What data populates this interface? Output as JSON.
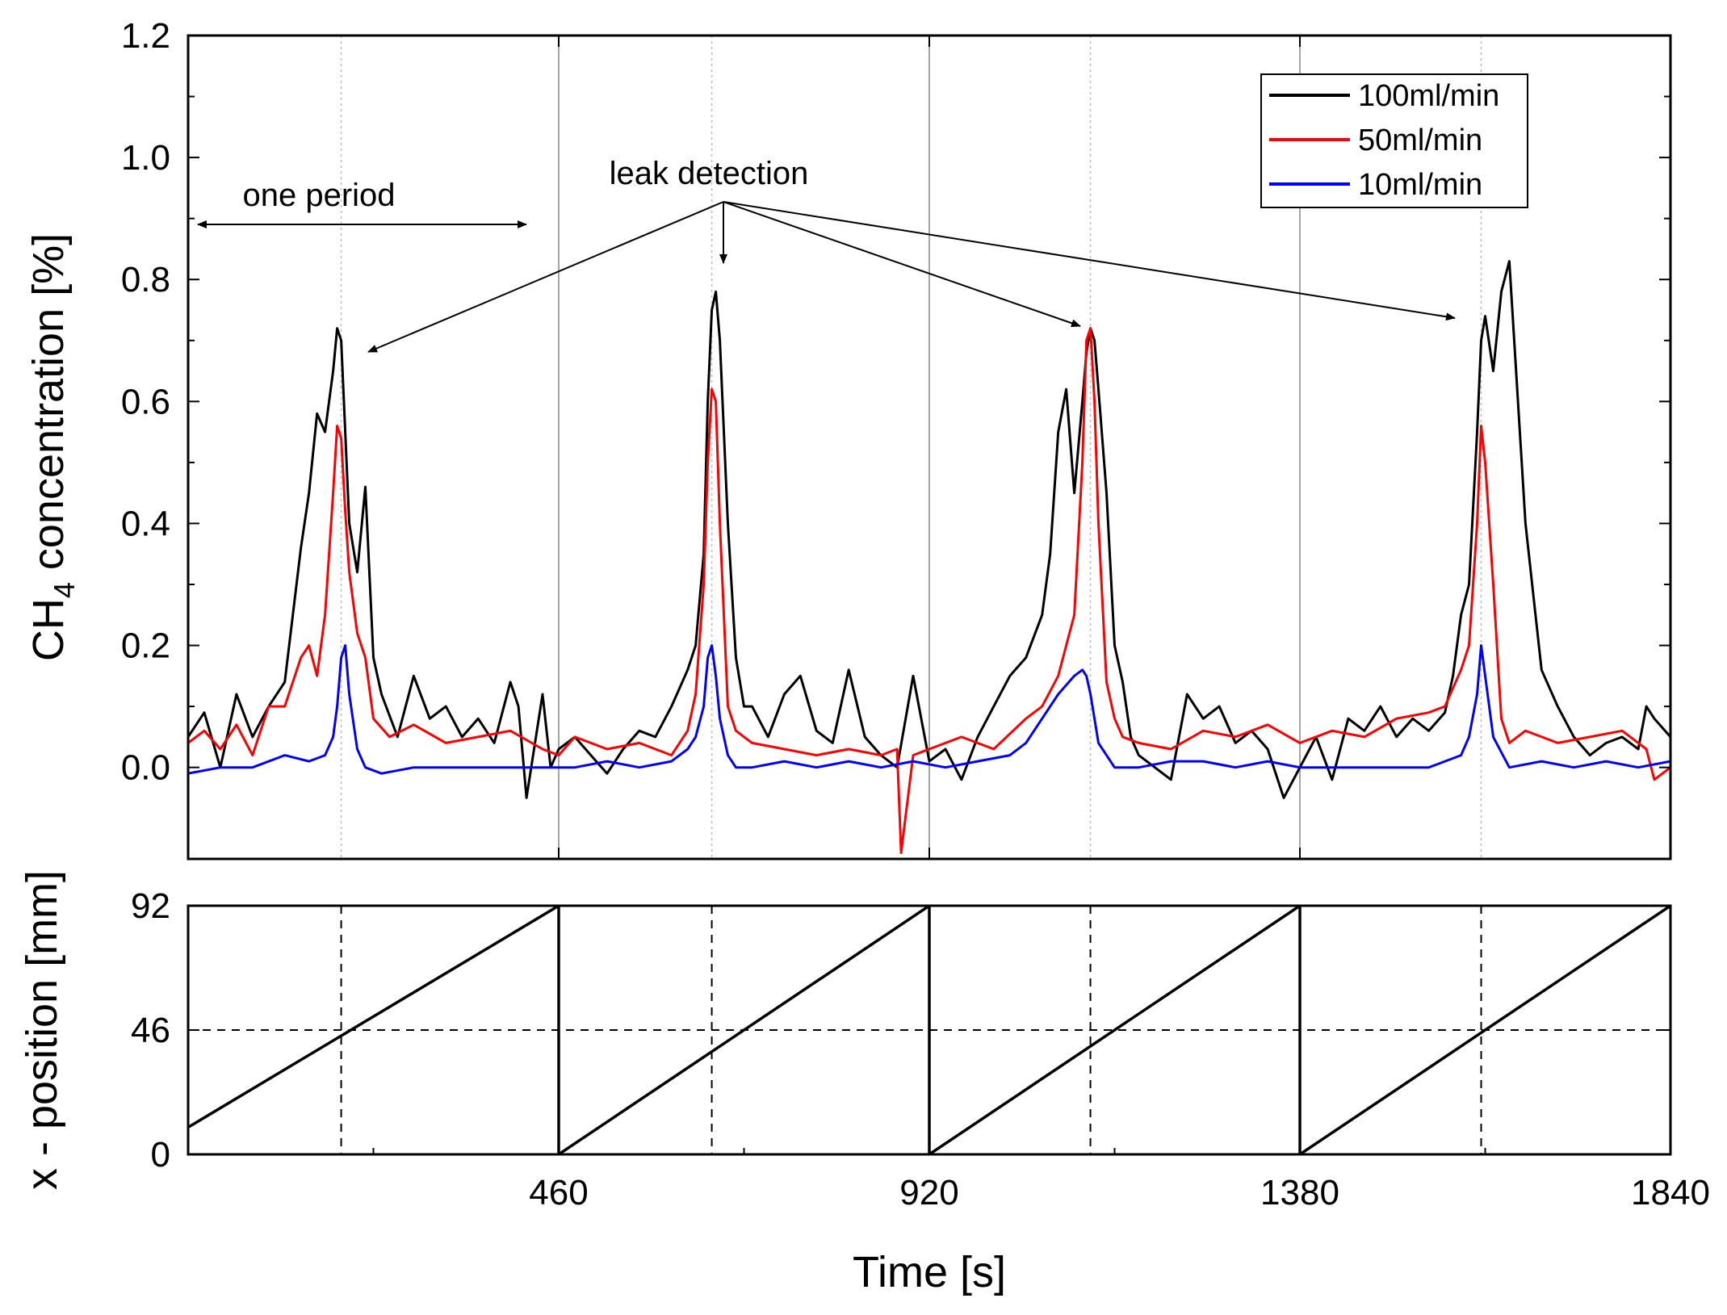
{
  "chart_data": [
    {
      "type": "line",
      "title": "",
      "xlabel": "",
      "ylabel_main": "CH",
      "ylabel_sub": "4",
      "ylabel_rest": " concentration [%]",
      "xlim": [
        0,
        1840
      ],
      "ylim": [
        -0.15,
        1.2
      ],
      "yticks": [
        0.0,
        0.2,
        0.4,
        0.6,
        0.8,
        1.0,
        1.2
      ],
      "ytick_labels": [
        "0.0",
        "0.2",
        "0.4",
        "0.6",
        "0.8",
        "1.0",
        "1.2"
      ],
      "period_lines_x": [
        460,
        920,
        1380
      ],
      "detection_lines_x": [
        190,
        650,
        1120,
        1605
      ],
      "legend_position": "top-right",
      "series": [
        {
          "name": "100ml/min",
          "color": "#000000",
          "x": [
            0,
            20,
            40,
            60,
            80,
            100,
            120,
            140,
            150,
            160,
            170,
            180,
            185,
            190,
            195,
            200,
            210,
            220,
            230,
            240,
            260,
            280,
            300,
            320,
            340,
            360,
            380,
            400,
            410,
            420,
            440,
            450,
            460,
            480,
            500,
            520,
            540,
            560,
            580,
            600,
            620,
            630,
            640,
            645,
            650,
            655,
            660,
            670,
            680,
            690,
            700,
            720,
            740,
            760,
            780,
            800,
            820,
            840,
            860,
            880,
            900,
            920,
            940,
            960,
            980,
            1000,
            1020,
            1040,
            1060,
            1070,
            1080,
            1090,
            1100,
            1110,
            1115,
            1120,
            1125,
            1130,
            1140,
            1150,
            1160,
            1170,
            1180,
            1200,
            1220,
            1240,
            1260,
            1280,
            1300,
            1320,
            1340,
            1360,
            1380,
            1400,
            1420,
            1440,
            1460,
            1480,
            1500,
            1520,
            1540,
            1560,
            1570,
            1580,
            1590,
            1600,
            1605,
            1610,
            1620,
            1630,
            1640,
            1660,
            1680,
            1700,
            1720,
            1740,
            1760,
            1780,
            1800,
            1810,
            1820,
            1840
          ],
          "y": [
            0.05,
            0.09,
            0.0,
            0.12,
            0.05,
            0.1,
            0.14,
            0.36,
            0.45,
            0.58,
            0.55,
            0.65,
            0.72,
            0.7,
            0.55,
            0.4,
            0.32,
            0.46,
            0.18,
            0.12,
            0.05,
            0.15,
            0.08,
            0.1,
            0.05,
            0.08,
            0.04,
            0.14,
            0.1,
            -0.05,
            0.12,
            0.0,
            0.03,
            0.05,
            0.02,
            -0.01,
            0.03,
            0.06,
            0.05,
            0.1,
            0.16,
            0.2,
            0.35,
            0.6,
            0.75,
            0.78,
            0.7,
            0.4,
            0.18,
            0.1,
            0.1,
            0.05,
            0.12,
            0.15,
            0.06,
            0.04,
            0.16,
            0.05,
            0.02,
            0.0,
            0.15,
            0.01,
            0.03,
            -0.02,
            0.05,
            0.1,
            0.15,
            0.18,
            0.25,
            0.35,
            0.55,
            0.62,
            0.45,
            0.6,
            0.68,
            0.72,
            0.7,
            0.62,
            0.45,
            0.2,
            0.14,
            0.05,
            0.02,
            0.0,
            -0.02,
            0.12,
            0.08,
            0.1,
            0.04,
            0.06,
            0.03,
            -0.05,
            0.0,
            0.05,
            -0.02,
            0.08,
            0.06,
            0.1,
            0.05,
            0.08,
            0.06,
            0.09,
            0.15,
            0.25,
            0.3,
            0.55,
            0.7,
            0.74,
            0.65,
            0.78,
            0.83,
            0.4,
            0.16,
            0.1,
            0.05,
            0.02,
            0.04,
            0.05,
            0.03,
            0.1,
            0.08,
            0.05
          ]
        },
        {
          "name": "50ml/min",
          "color": "#ff0000",
          "x": [
            0,
            20,
            40,
            60,
            80,
            100,
            120,
            140,
            150,
            160,
            170,
            180,
            185,
            190,
            195,
            200,
            210,
            220,
            230,
            250,
            280,
            320,
            360,
            400,
            440,
            460,
            480,
            520,
            560,
            600,
            620,
            630,
            640,
            645,
            650,
            655,
            660,
            670,
            680,
            700,
            740,
            780,
            820,
            860,
            880,
            885,
            900,
            920,
            960,
            1000,
            1040,
            1060,
            1080,
            1100,
            1110,
            1115,
            1120,
            1125,
            1130,
            1140,
            1150,
            1160,
            1180,
            1220,
            1260,
            1300,
            1340,
            1380,
            1420,
            1460,
            1500,
            1540,
            1560,
            1580,
            1590,
            1600,
            1605,
            1610,
            1620,
            1630,
            1640,
            1660,
            1700,
            1740,
            1780,
            1810,
            1820,
            1840
          ],
          "y": [
            0.04,
            0.06,
            0.03,
            0.07,
            0.02,
            0.1,
            0.1,
            0.18,
            0.2,
            0.15,
            0.25,
            0.45,
            0.56,
            0.54,
            0.42,
            0.32,
            0.22,
            0.18,
            0.08,
            0.05,
            0.07,
            0.04,
            0.05,
            0.06,
            0.03,
            0.02,
            0.05,
            0.03,
            0.04,
            0.02,
            0.06,
            0.12,
            0.3,
            0.5,
            0.62,
            0.6,
            0.4,
            0.1,
            0.06,
            0.04,
            0.03,
            0.02,
            0.03,
            0.02,
            0.03,
            -0.14,
            0.02,
            0.03,
            0.05,
            0.03,
            0.08,
            0.1,
            0.15,
            0.25,
            0.5,
            0.7,
            0.72,
            0.6,
            0.4,
            0.14,
            0.08,
            0.05,
            0.04,
            0.03,
            0.06,
            0.05,
            0.07,
            0.04,
            0.06,
            0.05,
            0.08,
            0.09,
            0.1,
            0.16,
            0.2,
            0.4,
            0.56,
            0.5,
            0.3,
            0.08,
            0.04,
            0.06,
            0.04,
            0.05,
            0.06,
            0.03,
            -0.02,
            0.0
          ]
        },
        {
          "name": "10ml/min",
          "color": "#0000ff",
          "x": [
            0,
            40,
            80,
            120,
            150,
            170,
            180,
            185,
            190,
            195,
            200,
            210,
            220,
            240,
            280,
            320,
            360,
            400,
            440,
            480,
            520,
            560,
            600,
            620,
            630,
            640,
            645,
            650,
            655,
            660,
            670,
            680,
            700,
            740,
            780,
            820,
            860,
            900,
            940,
            980,
            1020,
            1040,
            1060,
            1080,
            1100,
            1110,
            1115,
            1120,
            1125,
            1130,
            1140,
            1150,
            1180,
            1220,
            1260,
            1300,
            1340,
            1380,
            1420,
            1460,
            1500,
            1540,
            1580,
            1590,
            1600,
            1605,
            1610,
            1620,
            1640,
            1680,
            1720,
            1760,
            1800,
            1840
          ],
          "y": [
            -0.01,
            0.0,
            0.0,
            0.02,
            0.01,
            0.02,
            0.05,
            0.1,
            0.18,
            0.2,
            0.12,
            0.03,
            0.0,
            -0.01,
            0.0,
            0.0,
            0.0,
            0.0,
            0.0,
            0.0,
            0.01,
            0.0,
            0.01,
            0.03,
            0.05,
            0.1,
            0.18,
            0.2,
            0.15,
            0.08,
            0.02,
            0.0,
            0.0,
            0.01,
            0.0,
            0.01,
            0.0,
            0.01,
            0.0,
            0.01,
            0.02,
            0.04,
            0.08,
            0.12,
            0.15,
            0.16,
            0.15,
            0.12,
            0.08,
            0.04,
            0.02,
            0.0,
            0.0,
            0.01,
            0.01,
            0.0,
            0.01,
            0.0,
            0.0,
            0.0,
            0.0,
            0.0,
            0.02,
            0.05,
            0.12,
            0.2,
            0.15,
            0.05,
            0.0,
            0.01,
            0.0,
            0.01,
            0.0,
            0.01
          ]
        }
      ],
      "annotations": {
        "one_period": "one period",
        "leak_detection": "leak detection"
      }
    },
    {
      "type": "line",
      "title": "",
      "xlabel": "Time [s]",
      "ylabel": "x - position [mm]",
      "xlim": [
        0,
        1840
      ],
      "ylim": [
        0,
        92
      ],
      "xticks": [
        460,
        920,
        1380,
        1840
      ],
      "xtick_labels": [
        "460",
        "920",
        "1380",
        "1840"
      ],
      "yticks": [
        0,
        46,
        92
      ],
      "ytick_labels": [
        "0",
        "46",
        "92"
      ],
      "reference_y": 46,
      "detection_lines_x": [
        190,
        650,
        1120,
        1605
      ],
      "series": [
        {
          "name": "x - position",
          "color": "#000000",
          "x": [
            0,
            460,
            460,
            920,
            920,
            1380,
            1380,
            1840
          ],
          "y": [
            10,
            92,
            0,
            92,
            0,
            92,
            0,
            92
          ]
        }
      ]
    }
  ]
}
